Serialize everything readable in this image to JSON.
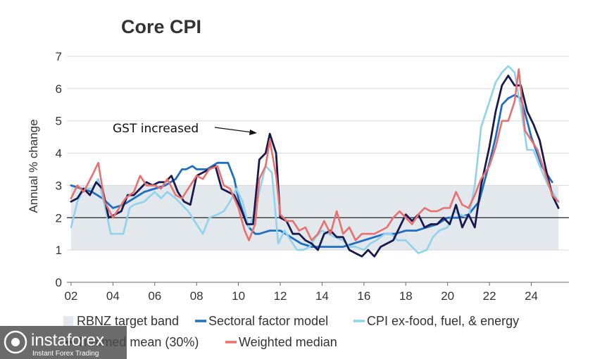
{
  "chart_data": {
    "type": "line",
    "title": "Core CPI",
    "xlabel": "",
    "ylabel": "Annual % change",
    "xlim": [
      2001.8,
      2025.8
    ],
    "ylim": [
      0,
      7
    ],
    "x_tick_labels": [
      "02",
      "04",
      "06",
      "08",
      "10",
      "12",
      "14",
      "16",
      "18",
      "20",
      "22",
      "24"
    ],
    "x_tick_values": [
      2002,
      2004,
      2006,
      2008,
      2010,
      2012,
      2014,
      2016,
      2018,
      2020,
      2022,
      2024
    ],
    "y_ticks": [
      0,
      1,
      2,
      3,
      4,
      5,
      6,
      7
    ],
    "target_band": {
      "name": "RBNZ target band",
      "from": 1,
      "to": 3,
      "midpoint": 2,
      "color": "#e3e8ec"
    },
    "annotation": {
      "text": "GST increased",
      "x": 2011.2,
      "y": 4.6
    },
    "series": [
      {
        "name": "Sectoral factor model",
        "color": "#1f6fc0",
        "points": [
          [
            2002,
            3.0
          ],
          [
            2002.5,
            2.9
          ],
          [
            2003,
            2.8
          ],
          [
            2003.5,
            2.6
          ],
          [
            2004,
            2.3
          ],
          [
            2004.5,
            2.4
          ],
          [
            2005,
            2.6
          ],
          [
            2005.5,
            2.8
          ],
          [
            2006,
            2.9
          ],
          [
            2006.5,
            3.0
          ],
          [
            2007,
            3.2
          ],
          [
            2007.3,
            3.5
          ],
          [
            2007.5,
            3.5
          ],
          [
            2007.8,
            3.6
          ],
          [
            2008,
            3.5
          ],
          [
            2008.5,
            3.5
          ],
          [
            2009,
            3.7
          ],
          [
            2009.3,
            3.7
          ],
          [
            2009.5,
            3.7
          ],
          [
            2009.8,
            3.2
          ],
          [
            2010,
            2.6
          ],
          [
            2010.3,
            2.0
          ],
          [
            2010.5,
            1.7
          ],
          [
            2010.8,
            1.5
          ],
          [
            2011,
            1.5
          ],
          [
            2011.5,
            1.6
          ],
          [
            2012,
            1.6
          ],
          [
            2012.5,
            1.4
          ],
          [
            2013,
            1.2
          ],
          [
            2013.5,
            1.1
          ],
          [
            2014,
            1.1
          ],
          [
            2014.5,
            1.1
          ],
          [
            2015,
            1.1
          ],
          [
            2015.5,
            1.2
          ],
          [
            2016,
            1.3
          ],
          [
            2016.5,
            1.4
          ],
          [
            2017,
            1.5
          ],
          [
            2017.5,
            1.5
          ],
          [
            2018,
            1.6
          ],
          [
            2018.5,
            1.6
          ],
          [
            2019,
            1.7
          ],
          [
            2019.5,
            1.8
          ],
          [
            2020,
            2.0
          ],
          [
            2020.5,
            2.0
          ],
          [
            2021,
            2.1
          ],
          [
            2021.5,
            2.5
          ],
          [
            2022,
            3.7
          ],
          [
            2022.3,
            4.5
          ],
          [
            2022.6,
            5.5
          ],
          [
            2022.9,
            5.7
          ],
          [
            2023.2,
            5.8
          ],
          [
            2023.5,
            5.7
          ],
          [
            2023.8,
            5.0
          ],
          [
            2024,
            4.5
          ],
          [
            2024.5,
            3.6
          ],
          [
            2025,
            3.1
          ]
        ]
      },
      {
        "name": "CPI ex-food, fuel, & energy",
        "color": "#8fd3ec",
        "points": [
          [
            2002,
            1.7
          ],
          [
            2002.3,
            2.5
          ],
          [
            2002.6,
            2.9
          ],
          [
            2003,
            2.9
          ],
          [
            2003.3,
            3.2
          ],
          [
            2003.6,
            2.4
          ],
          [
            2003.9,
            1.5
          ],
          [
            2004.2,
            1.5
          ],
          [
            2004.5,
            1.5
          ],
          [
            2004.8,
            2.3
          ],
          [
            2005,
            2.4
          ],
          [
            2005.5,
            2.5
          ],
          [
            2006,
            2.8
          ],
          [
            2006.3,
            2.6
          ],
          [
            2006.6,
            2.8
          ],
          [
            2007,
            2.6
          ],
          [
            2007.3,
            2.4
          ],
          [
            2007.6,
            2.2
          ],
          [
            2008,
            1.8
          ],
          [
            2008.3,
            1.5
          ],
          [
            2008.6,
            2.0
          ],
          [
            2009,
            2.1
          ],
          [
            2009.3,
            2.2
          ],
          [
            2009.6,
            2.5
          ],
          [
            2009.9,
            2.9
          ],
          [
            2010.2,
            2.5
          ],
          [
            2010.5,
            1.7
          ],
          [
            2010.8,
            2.2
          ],
          [
            2011,
            2.8
          ],
          [
            2011.3,
            3.6
          ],
          [
            2011.6,
            3.4
          ],
          [
            2011.9,
            1.2
          ],
          [
            2012.2,
            1.6
          ],
          [
            2012.5,
            1.3
          ],
          [
            2012.8,
            1.0
          ],
          [
            2013.1,
            1.0
          ],
          [
            2013.4,
            1.1
          ],
          [
            2013.7,
            1.4
          ],
          [
            2014,
            1.6
          ],
          [
            2014.3,
            1.5
          ],
          [
            2014.6,
            1.4
          ],
          [
            2015,
            1.3
          ],
          [
            2015.3,
            1.1
          ],
          [
            2015.6,
            1.1
          ],
          [
            2016,
            1.0
          ],
          [
            2016.3,
            1.2
          ],
          [
            2016.6,
            1.3
          ],
          [
            2017,
            1.5
          ],
          [
            2017.3,
            1.5
          ],
          [
            2017.6,
            1.3
          ],
          [
            2018,
            1.3
          ],
          [
            2018.3,
            1.1
          ],
          [
            2018.6,
            0.9
          ],
          [
            2019,
            1.0
          ],
          [
            2019.3,
            1.4
          ],
          [
            2019.6,
            1.6
          ],
          [
            2020,
            1.7
          ],
          [
            2020.3,
            2.2
          ],
          [
            2020.6,
            2.1
          ],
          [
            2021,
            2.0
          ],
          [
            2021.3,
            3.0
          ],
          [
            2021.6,
            4.8
          ],
          [
            2022,
            5.6
          ],
          [
            2022.3,
            6.2
          ],
          [
            2022.6,
            6.5
          ],
          [
            2022.9,
            6.7
          ],
          [
            2023.2,
            6.5
          ],
          [
            2023.5,
            5.4
          ],
          [
            2023.8,
            4.1
          ],
          [
            2024.1,
            4.1
          ],
          [
            2024.4,
            3.6
          ],
          [
            2024.8,
            3.0
          ],
          [
            2025.2,
            2.6
          ]
        ]
      },
      {
        "name": "Trimmed mean (30%)",
        "color": "#1a1a4e",
        "points": [
          [
            2002,
            2.5
          ],
          [
            2002.3,
            2.6
          ],
          [
            2002.6,
            2.9
          ],
          [
            2002.9,
            2.7
          ],
          [
            2003.2,
            3.1
          ],
          [
            2003.5,
            2.9
          ],
          [
            2003.8,
            2.0
          ],
          [
            2004.1,
            2.1
          ],
          [
            2004.4,
            2.2
          ],
          [
            2004.7,
            2.7
          ],
          [
            2005,
            2.7
          ],
          [
            2005.3,
            2.9
          ],
          [
            2005.6,
            3.1
          ],
          [
            2005.9,
            3.0
          ],
          [
            2006.2,
            3.1
          ],
          [
            2006.5,
            3.1
          ],
          [
            2006.8,
            3.3
          ],
          [
            2007.1,
            2.8
          ],
          [
            2007.4,
            2.5
          ],
          [
            2007.7,
            2.4
          ],
          [
            2008,
            3.3
          ],
          [
            2008.3,
            3.4
          ],
          [
            2008.6,
            3.5
          ],
          [
            2008.9,
            3.6
          ],
          [
            2009.2,
            2.9
          ],
          [
            2009.5,
            2.8
          ],
          [
            2009.8,
            2.7
          ],
          [
            2010.1,
            2.3
          ],
          [
            2010.4,
            1.8
          ],
          [
            2010.7,
            1.8
          ],
          [
            2011,
            3.8
          ],
          [
            2011.3,
            4.0
          ],
          [
            2011.5,
            4.6
          ],
          [
            2011.8,
            4.0
          ],
          [
            2012,
            2.0
          ],
          [
            2012.3,
            1.9
          ],
          [
            2012.6,
            1.5
          ],
          [
            2012.9,
            1.5
          ],
          [
            2013.2,
            1.3
          ],
          [
            2013.5,
            1.2
          ],
          [
            2013.8,
            1.0
          ],
          [
            2014.1,
            1.5
          ],
          [
            2014.4,
            1.6
          ],
          [
            2014.7,
            1.4
          ],
          [
            2015,
            1.4
          ],
          [
            2015.3,
            1.0
          ],
          [
            2015.6,
            0.9
          ],
          [
            2015.9,
            0.8
          ],
          [
            2016.2,
            1.0
          ],
          [
            2016.5,
            0.8
          ],
          [
            2016.8,
            1.1
          ],
          [
            2017.1,
            1.2
          ],
          [
            2017.4,
            1.3
          ],
          [
            2017.7,
            1.7
          ],
          [
            2018,
            2.1
          ],
          [
            2018.3,
            1.9
          ],
          [
            2018.6,
            2.1
          ],
          [
            2018.9,
            1.7
          ],
          [
            2019.2,
            1.8
          ],
          [
            2019.5,
            1.8
          ],
          [
            2019.8,
            2.0
          ],
          [
            2020.1,
            1.8
          ],
          [
            2020.4,
            2.4
          ],
          [
            2020.7,
            1.7
          ],
          [
            2021,
            2.1
          ],
          [
            2021.3,
            1.7
          ],
          [
            2021.6,
            3.0
          ],
          [
            2022,
            4.2
          ],
          [
            2022.3,
            5.3
          ],
          [
            2022.6,
            6.1
          ],
          [
            2022.9,
            6.4
          ],
          [
            2023.2,
            6.1
          ],
          [
            2023.5,
            6.1
          ],
          [
            2023.8,
            5.3
          ],
          [
            2024.1,
            4.9
          ],
          [
            2024.4,
            4.4
          ],
          [
            2024.7,
            3.5
          ],
          [
            2025,
            2.7
          ],
          [
            2025.3,
            2.3
          ]
        ]
      },
      {
        "name": "Weighted median",
        "color": "#ea6f6f",
        "points": [
          [
            2002,
            2.6
          ],
          [
            2002.3,
            3.0
          ],
          [
            2002.6,
            2.8
          ],
          [
            2003,
            3.3
          ],
          [
            2003.3,
            3.7
          ],
          [
            2003.6,
            2.5
          ],
          [
            2004,
            2.0
          ],
          [
            2004.3,
            2.3
          ],
          [
            2004.6,
            2.6
          ],
          [
            2005,
            2.8
          ],
          [
            2005.3,
            3.3
          ],
          [
            2005.6,
            3.0
          ],
          [
            2006,
            3.0
          ],
          [
            2006.3,
            2.9
          ],
          [
            2006.6,
            3.2
          ],
          [
            2007,
            2.7
          ],
          [
            2007.3,
            2.6
          ],
          [
            2007.6,
            2.9
          ],
          [
            2008,
            3.3
          ],
          [
            2008.3,
            3.2
          ],
          [
            2008.6,
            3.5
          ],
          [
            2009,
            3.6
          ],
          [
            2009.3,
            3.0
          ],
          [
            2009.6,
            2.9
          ],
          [
            2010,
            2.3
          ],
          [
            2010.3,
            1.6
          ],
          [
            2010.5,
            1.3
          ],
          [
            2010.8,
            1.8
          ],
          [
            2011,
            3.2
          ],
          [
            2011.3,
            3.6
          ],
          [
            2011.5,
            4.4
          ],
          [
            2011.8,
            3.3
          ],
          [
            2012,
            2.1
          ],
          [
            2012.3,
            1.9
          ],
          [
            2012.6,
            1.9
          ],
          [
            2012.9,
            1.6
          ],
          [
            2013.2,
            1.7
          ],
          [
            2013.5,
            1.3
          ],
          [
            2013.8,
            1.5
          ],
          [
            2014.1,
            1.9
          ],
          [
            2014.4,
            1.5
          ],
          [
            2014.7,
            2.2
          ],
          [
            2015,
            1.5
          ],
          [
            2015.3,
            1.7
          ],
          [
            2015.6,
            1.3
          ],
          [
            2015.9,
            1.5
          ],
          [
            2016.2,
            1.5
          ],
          [
            2016.5,
            1.5
          ],
          [
            2016.8,
            1.6
          ],
          [
            2017.1,
            1.7
          ],
          [
            2017.4,
            2.0
          ],
          [
            2017.7,
            2.2
          ],
          [
            2018,
            2.0
          ],
          [
            2018.3,
            1.8
          ],
          [
            2018.6,
            2.1
          ],
          [
            2018.9,
            2.3
          ],
          [
            2019.2,
            2.2
          ],
          [
            2019.5,
            2.2
          ],
          [
            2019.8,
            2.3
          ],
          [
            2020.1,
            2.3
          ],
          [
            2020.4,
            2.8
          ],
          [
            2020.7,
            2.4
          ],
          [
            2021,
            2.3
          ],
          [
            2021.3,
            2.7
          ],
          [
            2021.6,
            3.2
          ],
          [
            2022,
            3.6
          ],
          [
            2022.3,
            4.2
          ],
          [
            2022.6,
            5.0
          ],
          [
            2022.9,
            5.0
          ],
          [
            2023.2,
            5.6
          ],
          [
            2023.4,
            6.6
          ],
          [
            2023.7,
            4.7
          ],
          [
            2024,
            4.4
          ],
          [
            2024.3,
            4.1
          ],
          [
            2024.6,
            3.5
          ],
          [
            2025,
            2.7
          ],
          [
            2025.3,
            2.5
          ]
        ]
      }
    ],
    "legend": {
      "placement": "bottom",
      "entries": [
        {
          "label": "RBNZ target band",
          "color": "#e3e8ec",
          "kind": "band"
        },
        {
          "label": "Sectoral factor model",
          "color": "#1f6fc0",
          "kind": "line"
        },
        {
          "label": "CPI ex-food, fuel, & energy",
          "color": "#8fd3ec",
          "kind": "line"
        },
        {
          "label": "Trimmed mean (30%)",
          "color": "#1a1a4e",
          "kind": "line"
        },
        {
          "label": "Weighted median",
          "color": "#ea6f6f",
          "kind": "line"
        }
      ]
    }
  },
  "watermark": {
    "brand": "instaforex",
    "tagline": "Instant Forex Trading"
  }
}
